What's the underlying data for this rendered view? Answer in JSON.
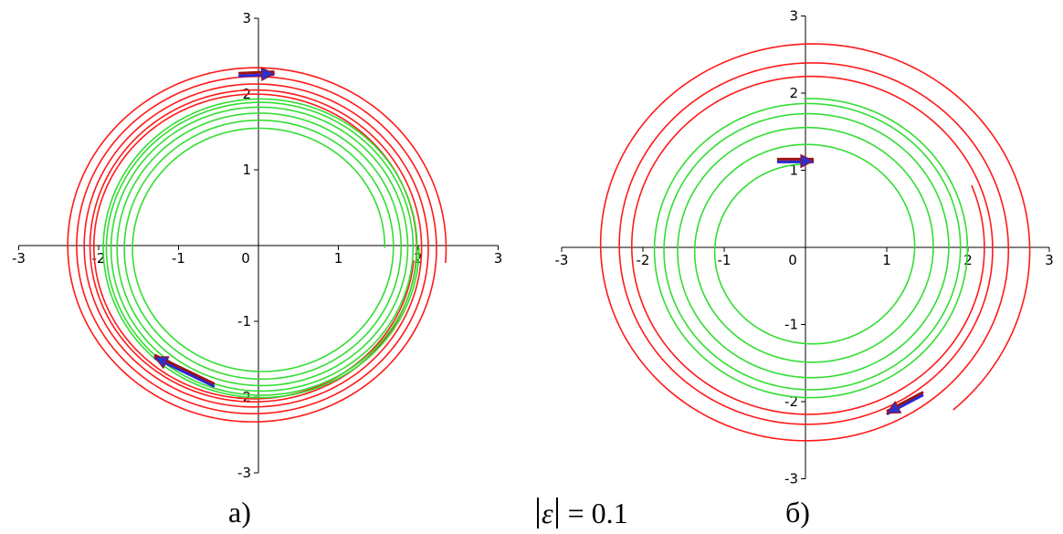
{
  "chart_data": [
    {
      "type": "line",
      "id": "panel-a",
      "caption": "а)",
      "xlim": [
        -3,
        3
      ],
      "ylim": [
        -3,
        3
      ],
      "x_ticks": [
        "-3",
        "-2",
        "-1",
        "0",
        "1",
        "2",
        "3"
      ],
      "y_ticks": [
        "3",
        "2",
        "1",
        "-1",
        "-2",
        "-3"
      ],
      "grid": false,
      "series": [
        {
          "kind": "spiral",
          "color": "#ff1a1a",
          "r_start": 2.4,
          "r_end": 2.0,
          "theta_start_deg": -5,
          "turns": 5,
          "x_shift": -0.05,
          "y_shift": -0.02
        },
        {
          "kind": "spiral",
          "color": "#33dd33",
          "r_start": 1.55,
          "r_end": 1.98,
          "theta_start_deg": 0,
          "turns": 6,
          "x_shift": 0.03,
          "y_shift": -0.03
        }
      ],
      "arrows": [
        {
          "x": -0.25,
          "y": 2.25,
          "dx": 0.45,
          "dy": 0.02
        },
        {
          "x": -0.55,
          "y": -1.85,
          "dx": -0.75,
          "dy": 0.38
        }
      ]
    },
    {
      "type": "line",
      "id": "panel-b",
      "caption": "б)",
      "xlim": [
        -3,
        3
      ],
      "ylim": [
        -3,
        3
      ],
      "x_ticks": [
        "-3",
        "-2",
        "-1",
        "0",
        "1",
        "2",
        "3"
      ],
      "y_ticks": [
        "3",
        "2",
        "1",
        "-1",
        "-2",
        "-3"
      ],
      "grid": false,
      "series": [
        {
          "kind": "spiral",
          "color": "#ff1a1a",
          "r_start": 2.75,
          "r_end": 2.15,
          "theta_start_deg": -50,
          "turns": 3.2,
          "x_shift": 0.05,
          "y_shift": 0.0
        },
        {
          "kind": "spiral",
          "color": "#33dd33",
          "r_start": 1.1,
          "r_end": 1.95,
          "theta_start_deg": 92,
          "turns": 5,
          "x_shift": 0.05,
          "y_shift": -0.02
        }
      ],
      "arrows": [
        {
          "x": -0.35,
          "y": 1.12,
          "dx": 0.45,
          "dy": 0.0
        },
        {
          "x": 1.45,
          "y": -1.9,
          "dx": -0.45,
          "dy": -0.25
        }
      ]
    }
  ],
  "parameter": {
    "symbol": "ε",
    "value": "= 0.1"
  }
}
